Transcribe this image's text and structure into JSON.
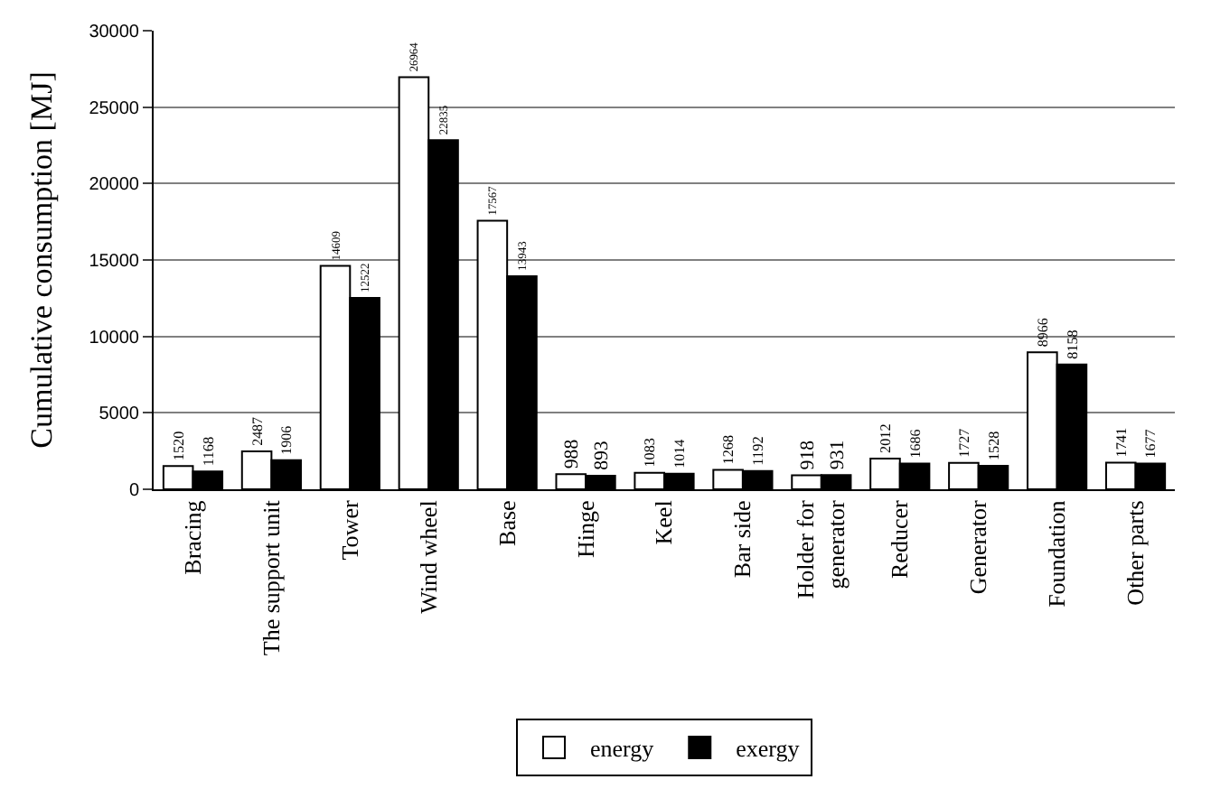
{
  "chart_data": {
    "type": "bar",
    "ylabel": "Cumulative consumption [MJ]",
    "categories": [
      "Bracing",
      "The support unit",
      "Tower",
      "Wind wheel",
      "Base",
      "Hinge",
      "Keel",
      "Bar side",
      "Holder for generator",
      "Reducer",
      "Generator",
      "Foundation",
      "Other parts"
    ],
    "series": [
      {
        "name": "energy",
        "color": "#ffffff",
        "values": [
          1520,
          2487,
          14609,
          26964,
          17567,
          988,
          1083,
          1268,
          918,
          2012,
          1727,
          8966,
          1741
        ]
      },
      {
        "name": "exergy",
        "color": "#000000",
        "values": [
          1168,
          1906,
          12522,
          22835,
          13943,
          893,
          1014,
          1192,
          931,
          1686,
          1528,
          8158,
          1677
        ]
      }
    ],
    "ylim": [
      0,
      30000
    ],
    "yticks": [
      0,
      5000,
      10000,
      15000,
      20000,
      25000,
      30000
    ],
    "grid": "y",
    "legend": "bottom",
    "data_labels": true
  }
}
